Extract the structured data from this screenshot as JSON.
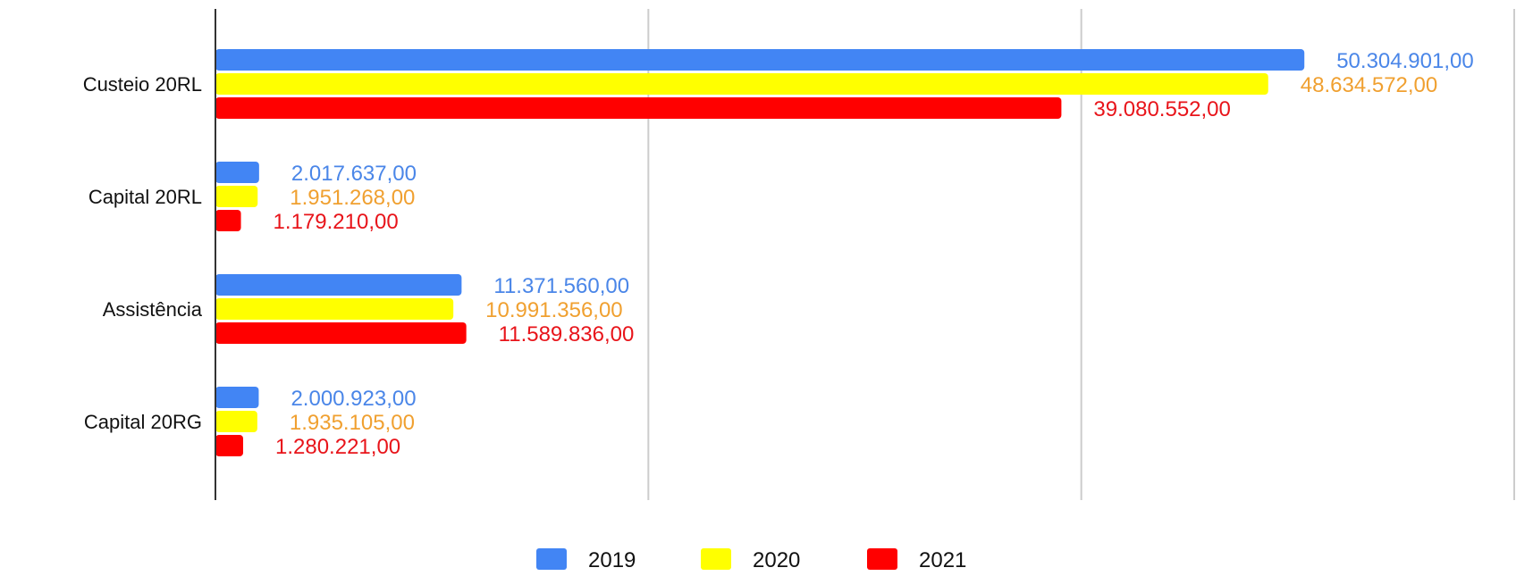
{
  "chart_data": {
    "type": "bar",
    "orientation": "horizontal",
    "categories": [
      "Custeio 20RL",
      "Capital 20RL",
      "Assistência",
      "Capital 20RG"
    ],
    "series": [
      {
        "name": "2019",
        "color": "#4285f4",
        "label_color": "#4a86e8",
        "values": [
          50304901.0,
          2017637.0,
          11371560.0,
          2000923.0
        ],
        "labels": [
          "50.304.901,00",
          "2.017.637,00",
          "11.371.560,00",
          "2.000.923,00"
        ]
      },
      {
        "name": "2020",
        "color": "#ffff00",
        "label_color": "#f0a030",
        "values": [
          48634572.0,
          1951268.0,
          10991356.0,
          1935105.0
        ],
        "labels": [
          "48.634.572,00",
          "1.951.268,00",
          "10.991.356,00",
          "1.935.105,00"
        ]
      },
      {
        "name": "2021",
        "color": "#ff0000",
        "label_color": "#e8141a",
        "values": [
          39080552.0,
          1179210.0,
          11589836.0,
          1280221.0
        ],
        "labels": [
          "39.080.552,00",
          "1.179.210,00",
          "11.589.836,00",
          "1.280.221,00"
        ]
      }
    ],
    "xlim": [
      0,
      60000000
    ],
    "grid": true,
    "x_tick_labels_visible": false,
    "legend_position": "bottom"
  }
}
